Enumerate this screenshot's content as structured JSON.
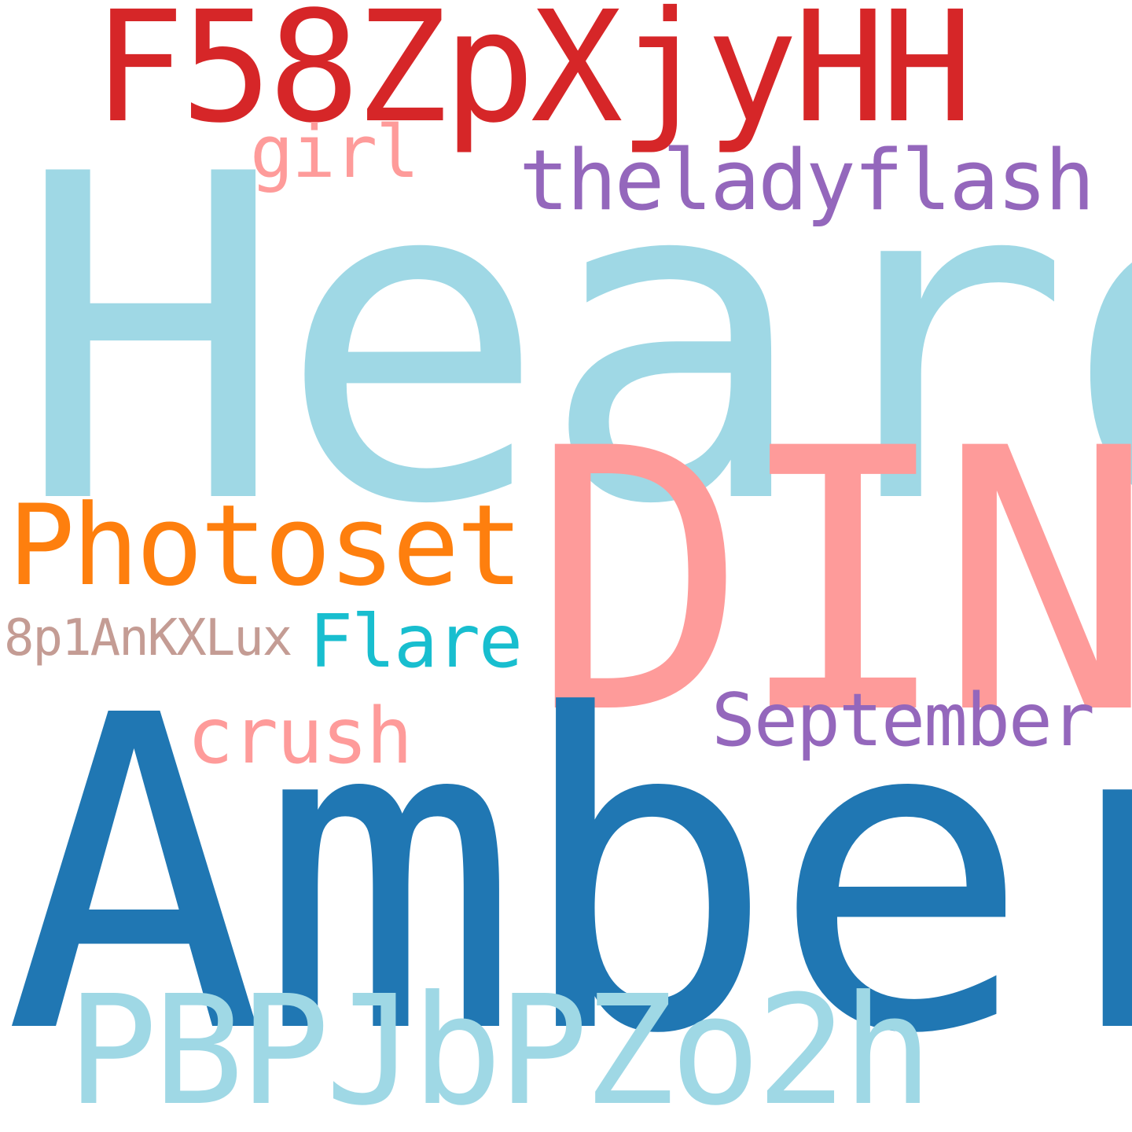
{
  "background_color": "#ffffff",
  "words": [
    {
      "text": "Heard",
      "color": "#9fd8e5"
    },
    {
      "text": "DIN",
      "color": "#fe9b9a"
    },
    {
      "text": "Amber",
      "color": "#2077b3"
    },
    {
      "text": "F58ZpXjyHH",
      "color": "#d62628"
    },
    {
      "text": "PBPJbPZo2h",
      "color": "#9fd8e5"
    },
    {
      "text": "Photoset",
      "color": "#fe7f0e"
    },
    {
      "text": "theladyflash",
      "color": "#9467bc"
    },
    {
      "text": "September",
      "color": "#9467bc"
    },
    {
      "text": "crush",
      "color": "#fe9b9a"
    },
    {
      "text": "Flare",
      "color": "#18becf"
    },
    {
      "text": "girl",
      "color": "#fe9b9a"
    },
    {
      "text": "8p1AnKXLux",
      "color": "#c49c94"
    }
  ]
}
